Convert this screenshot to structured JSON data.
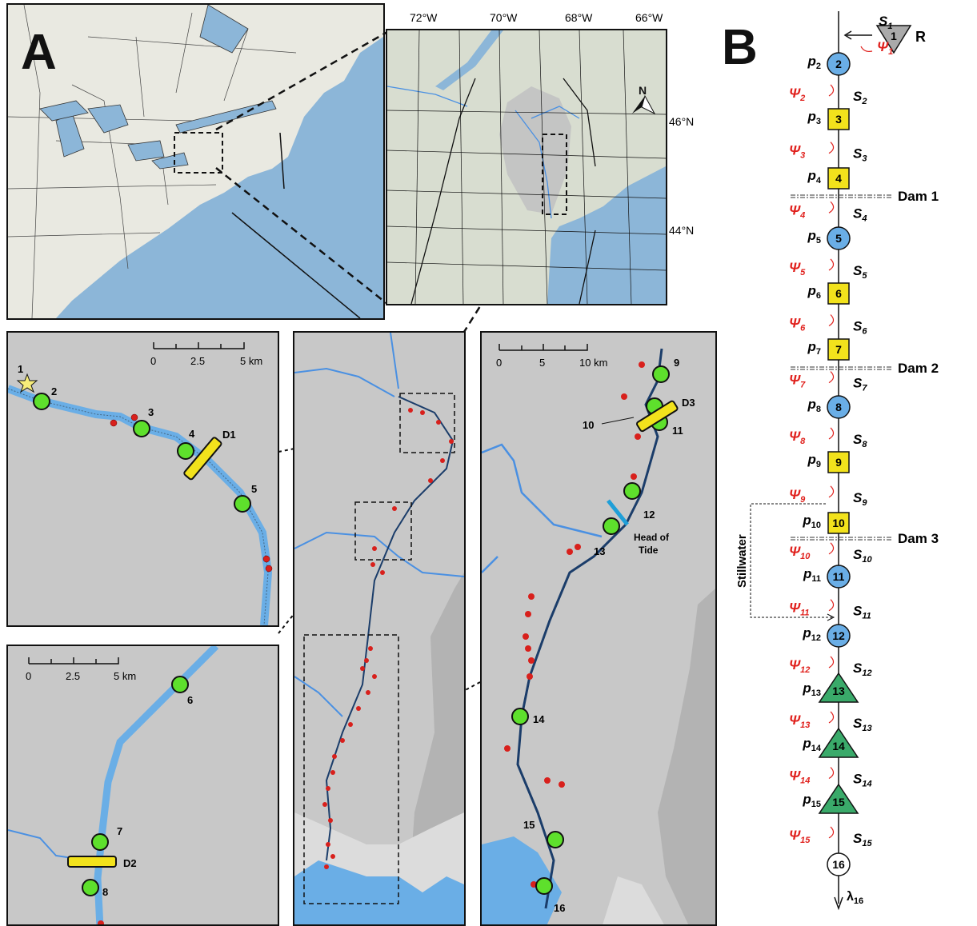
{
  "panel_labels": {
    "a": "A",
    "b": "B"
  },
  "locator": {
    "lon_labels": [
      "72°W",
      "70°W",
      "68°W",
      "66°W"
    ],
    "lat_labels": [
      "46°N",
      "44°N"
    ],
    "north": "N"
  },
  "scalebars": {
    "upper_left": {
      "ticks": [
        "0",
        "2.5",
        "5 km"
      ]
    },
    "lower_left": {
      "ticks": [
        "0",
        "2.5",
        "5 km"
      ]
    },
    "right": {
      "ticks": [
        "0",
        "5",
        "10 km"
      ]
    }
  },
  "sites": {
    "s1": "1",
    "s2": "2",
    "s3": "3",
    "s4": "4",
    "s5": "5",
    "s6": "6",
    "s7": "7",
    "s8": "8",
    "s9": "9",
    "s10": "10",
    "s11": "11",
    "s12": "12",
    "s13": "13",
    "s14": "14",
    "s15": "15",
    "s16": "16"
  },
  "dams": {
    "d1": "D1",
    "d2": "D2",
    "d3": "D3"
  },
  "head_of_tide": {
    "line1": "Head of",
    "line2": "Tide"
  },
  "schematic": {
    "release": {
      "num": "1",
      "letter": "R"
    },
    "nodes": [
      {
        "num": "2",
        "p": "p",
        "sub": "2"
      },
      {
        "num": "3",
        "p": "p",
        "sub": "3"
      },
      {
        "num": "4",
        "p": "p",
        "sub": "4"
      },
      {
        "num": "5",
        "p": "p",
        "sub": "5"
      },
      {
        "num": "6",
        "p": "p",
        "sub": "6"
      },
      {
        "num": "7",
        "p": "p",
        "sub": "7"
      },
      {
        "num": "8",
        "p": "p",
        "sub": "8"
      },
      {
        "num": "9",
        "p": "p",
        "sub": "9"
      },
      {
        "num": "10",
        "p": "p",
        "sub": "10"
      },
      {
        "num": "11",
        "p": "p",
        "sub": "11"
      },
      {
        "num": "12",
        "p": "p",
        "sub": "12"
      },
      {
        "num": "13",
        "p": "p",
        "sub": "13"
      },
      {
        "num": "14",
        "p": "p",
        "sub": "14"
      },
      {
        "num": "15",
        "p": "p",
        "sub": "15"
      },
      {
        "num": "16"
      }
    ],
    "s_labels": [
      "1",
      "2",
      "3",
      "4",
      "5",
      "6",
      "7",
      "8",
      "9",
      "10",
      "11",
      "12",
      "13",
      "14",
      "15"
    ],
    "psi_labels": [
      "1",
      "2",
      "3",
      "4",
      "5",
      "6",
      "7",
      "8",
      "9",
      "10",
      "11",
      "12",
      "13",
      "14",
      "15"
    ],
    "S": "S",
    "psi": "Ψ",
    "dam_labels": [
      "Dam 1",
      "Dam 2",
      "Dam 3"
    ],
    "stillwater": "Stillwater",
    "lambda": "λ",
    "lambda_sub": "16",
    "colors": {
      "circle": "#6aaee6",
      "square": "#f2e21c",
      "triangle": "#3aaa6a",
      "psi": "#e0201c",
      "release": "#aaaaaa"
    }
  }
}
